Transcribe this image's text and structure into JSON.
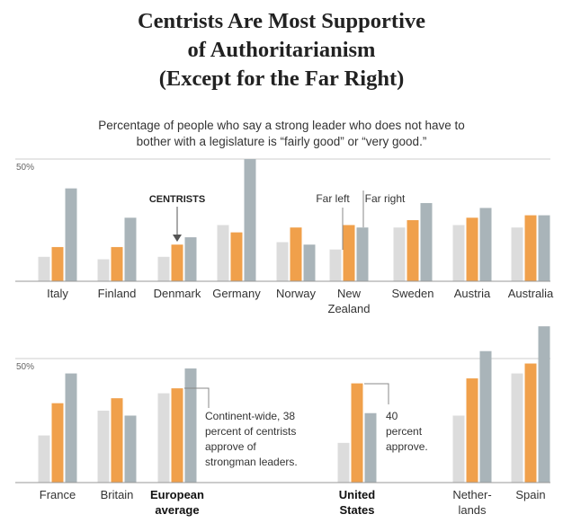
{
  "header": {
    "title_lines": [
      "Centrists Are Most Supportive",
      "of Authoritarianism",
      "(Except for the Far Right)"
    ],
    "subtitle_lines": [
      "Percentage of people who say a strong leader who does not have to",
      "bother with a legislature is “fairly good” or “very good.”"
    ]
  },
  "colors": {
    "far_left": "#dcdcdc",
    "centrist": "#f0a04b",
    "far_right": "#a9b4b9",
    "rule": "#999999",
    "text": "#333333"
  },
  "chart_data": [
    {
      "type": "bar",
      "ytick_label": "50%",
      "ylim": [
        0,
        50
      ],
      "legend": {
        "far_left": "Far left",
        "far_right": "Far right",
        "centrists": "CENTRISTS"
      },
      "series_order": [
        "far_left",
        "centrist",
        "far_right"
      ],
      "countries": [
        {
          "label_lines": [
            "Italy"
          ],
          "values": [
            10,
            14,
            38
          ]
        },
        {
          "label_lines": [
            "Finland"
          ],
          "values": [
            9,
            14,
            26
          ]
        },
        {
          "label_lines": [
            "Denmark"
          ],
          "values": [
            10,
            15,
            18
          ]
        },
        {
          "label_lines": [
            "Germany"
          ],
          "values": [
            23,
            20,
            50
          ]
        },
        {
          "label_lines": [
            "Norway"
          ],
          "values": [
            16,
            22,
            15
          ]
        },
        {
          "label_lines": [
            "New",
            "Zealand"
          ],
          "values": [
            13,
            23,
            22
          ]
        },
        {
          "label_lines": [
            "Sweden"
          ],
          "values": [
            22,
            25,
            32
          ]
        },
        {
          "label_lines": [
            "Austria"
          ],
          "values": [
            23,
            26,
            30
          ]
        },
        {
          "label_lines": [
            "Australia"
          ],
          "values": [
            22,
            27,
            27
          ]
        }
      ]
    },
    {
      "type": "bar",
      "ytick_label": "50%",
      "ylim": [
        0,
        50
      ],
      "series_order": [
        "far_left",
        "centrist",
        "far_right"
      ],
      "annotations": [
        {
          "lines": [
            "Continent-wide, 38",
            "percent of centrists",
            "approve of",
            "strongman leaders."
          ]
        },
        {
          "lines": [
            "40",
            "percent",
            "approve."
          ]
        }
      ],
      "countries": [
        {
          "label_lines": [
            "France"
          ],
          "values": [
            19,
            32,
            44
          ],
          "bold": false
        },
        {
          "label_lines": [
            "Britain"
          ],
          "values": [
            29,
            34,
            27
          ],
          "bold": false
        },
        {
          "label_lines": [
            "European",
            "average"
          ],
          "values": [
            36,
            38,
            46
          ],
          "bold": true
        },
        {
          "label_lines": [
            "United",
            "States"
          ],
          "values": [
            16,
            40,
            28
          ],
          "bold": true
        },
        {
          "label_lines": [
            "Nether-",
            "lands"
          ],
          "values": [
            27,
            42,
            53
          ],
          "bold": false
        },
        {
          "label_lines": [
            "Spain"
          ],
          "values": [
            44,
            48,
            63
          ],
          "bold": false
        }
      ]
    }
  ]
}
